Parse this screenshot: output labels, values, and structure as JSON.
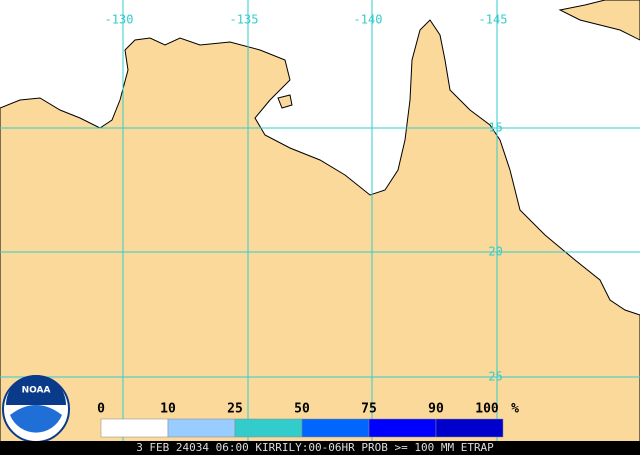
{
  "map": {
    "lon_labels": [
      "-130",
      "-135",
      "-140",
      "-145"
    ],
    "lat_labels": [
      "-15",
      "-20",
      "-25"
    ],
    "land_color": "#fad99b",
    "grid_color": "#33cccc"
  },
  "logo": "NOAA",
  "legend": {
    "labels": [
      0,
      10,
      25,
      50,
      75,
      90,
      100
    ],
    "unit": "%",
    "colors": [
      "#ffffff",
      "#99ccff",
      "#33cccc",
      "#0066ff",
      "#0000ff",
      "#0000cc",
      "#000099"
    ]
  },
  "caption": "3 FEB 24034 06:00 KIRRILY:00-06HR PROB >= 100 MM ETRAP"
}
